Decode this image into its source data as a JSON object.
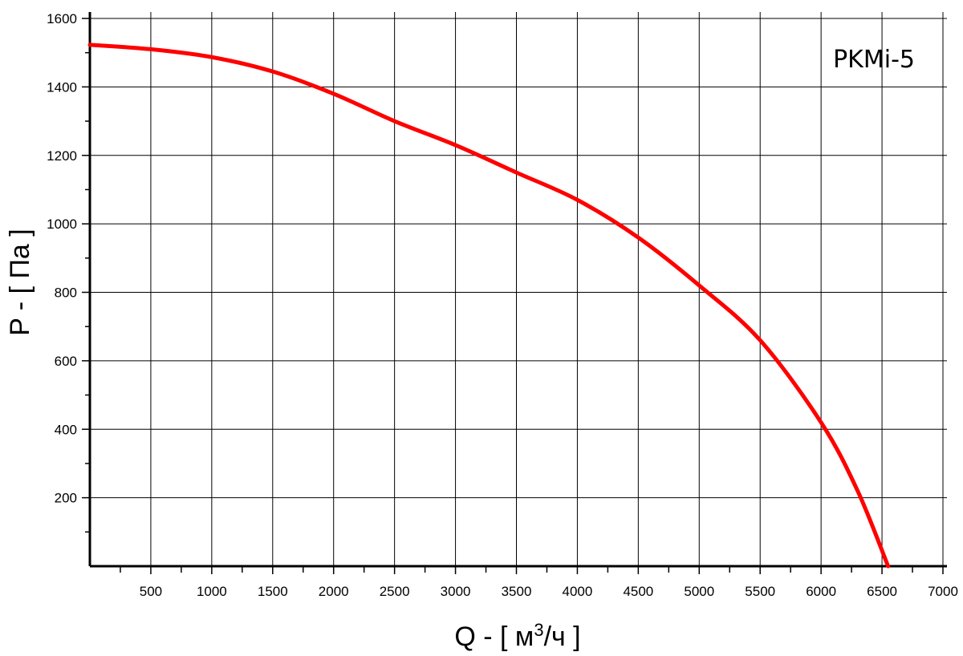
{
  "chart_data": {
    "type": "line",
    "label": "PKMi-5",
    "xlabel": "Q - [ м³/ч ]",
    "xlabel_parts": {
      "prefix": "Q - [ м",
      "sup": "3",
      "suffix": "/ч ]"
    },
    "ylabel": "P - [ Па ]",
    "xlim": [
      0,
      7000
    ],
    "ylim": [
      0,
      1600
    ],
    "x_ticks": [
      500,
      1000,
      1500,
      2000,
      2500,
      3000,
      3500,
      4000,
      4500,
      5000,
      5500,
      6000,
      6500,
      7000
    ],
    "y_ticks": [
      200,
      400,
      600,
      800,
      1000,
      1200,
      1400,
      1600
    ],
    "grid": true,
    "line_color": "#ff0000",
    "series": [
      {
        "x": [
          0,
          500,
          1000,
          1500,
          2000,
          2500,
          3000,
          3500,
          4000,
          4500,
          5000,
          5500,
          6000,
          6300,
          6550
        ],
        "values": [
          1523,
          1510,
          1487,
          1445,
          1380,
          1300,
          1230,
          1150,
          1070,
          960,
          820,
          660,
          420,
          220,
          0
        ]
      }
    ]
  }
}
